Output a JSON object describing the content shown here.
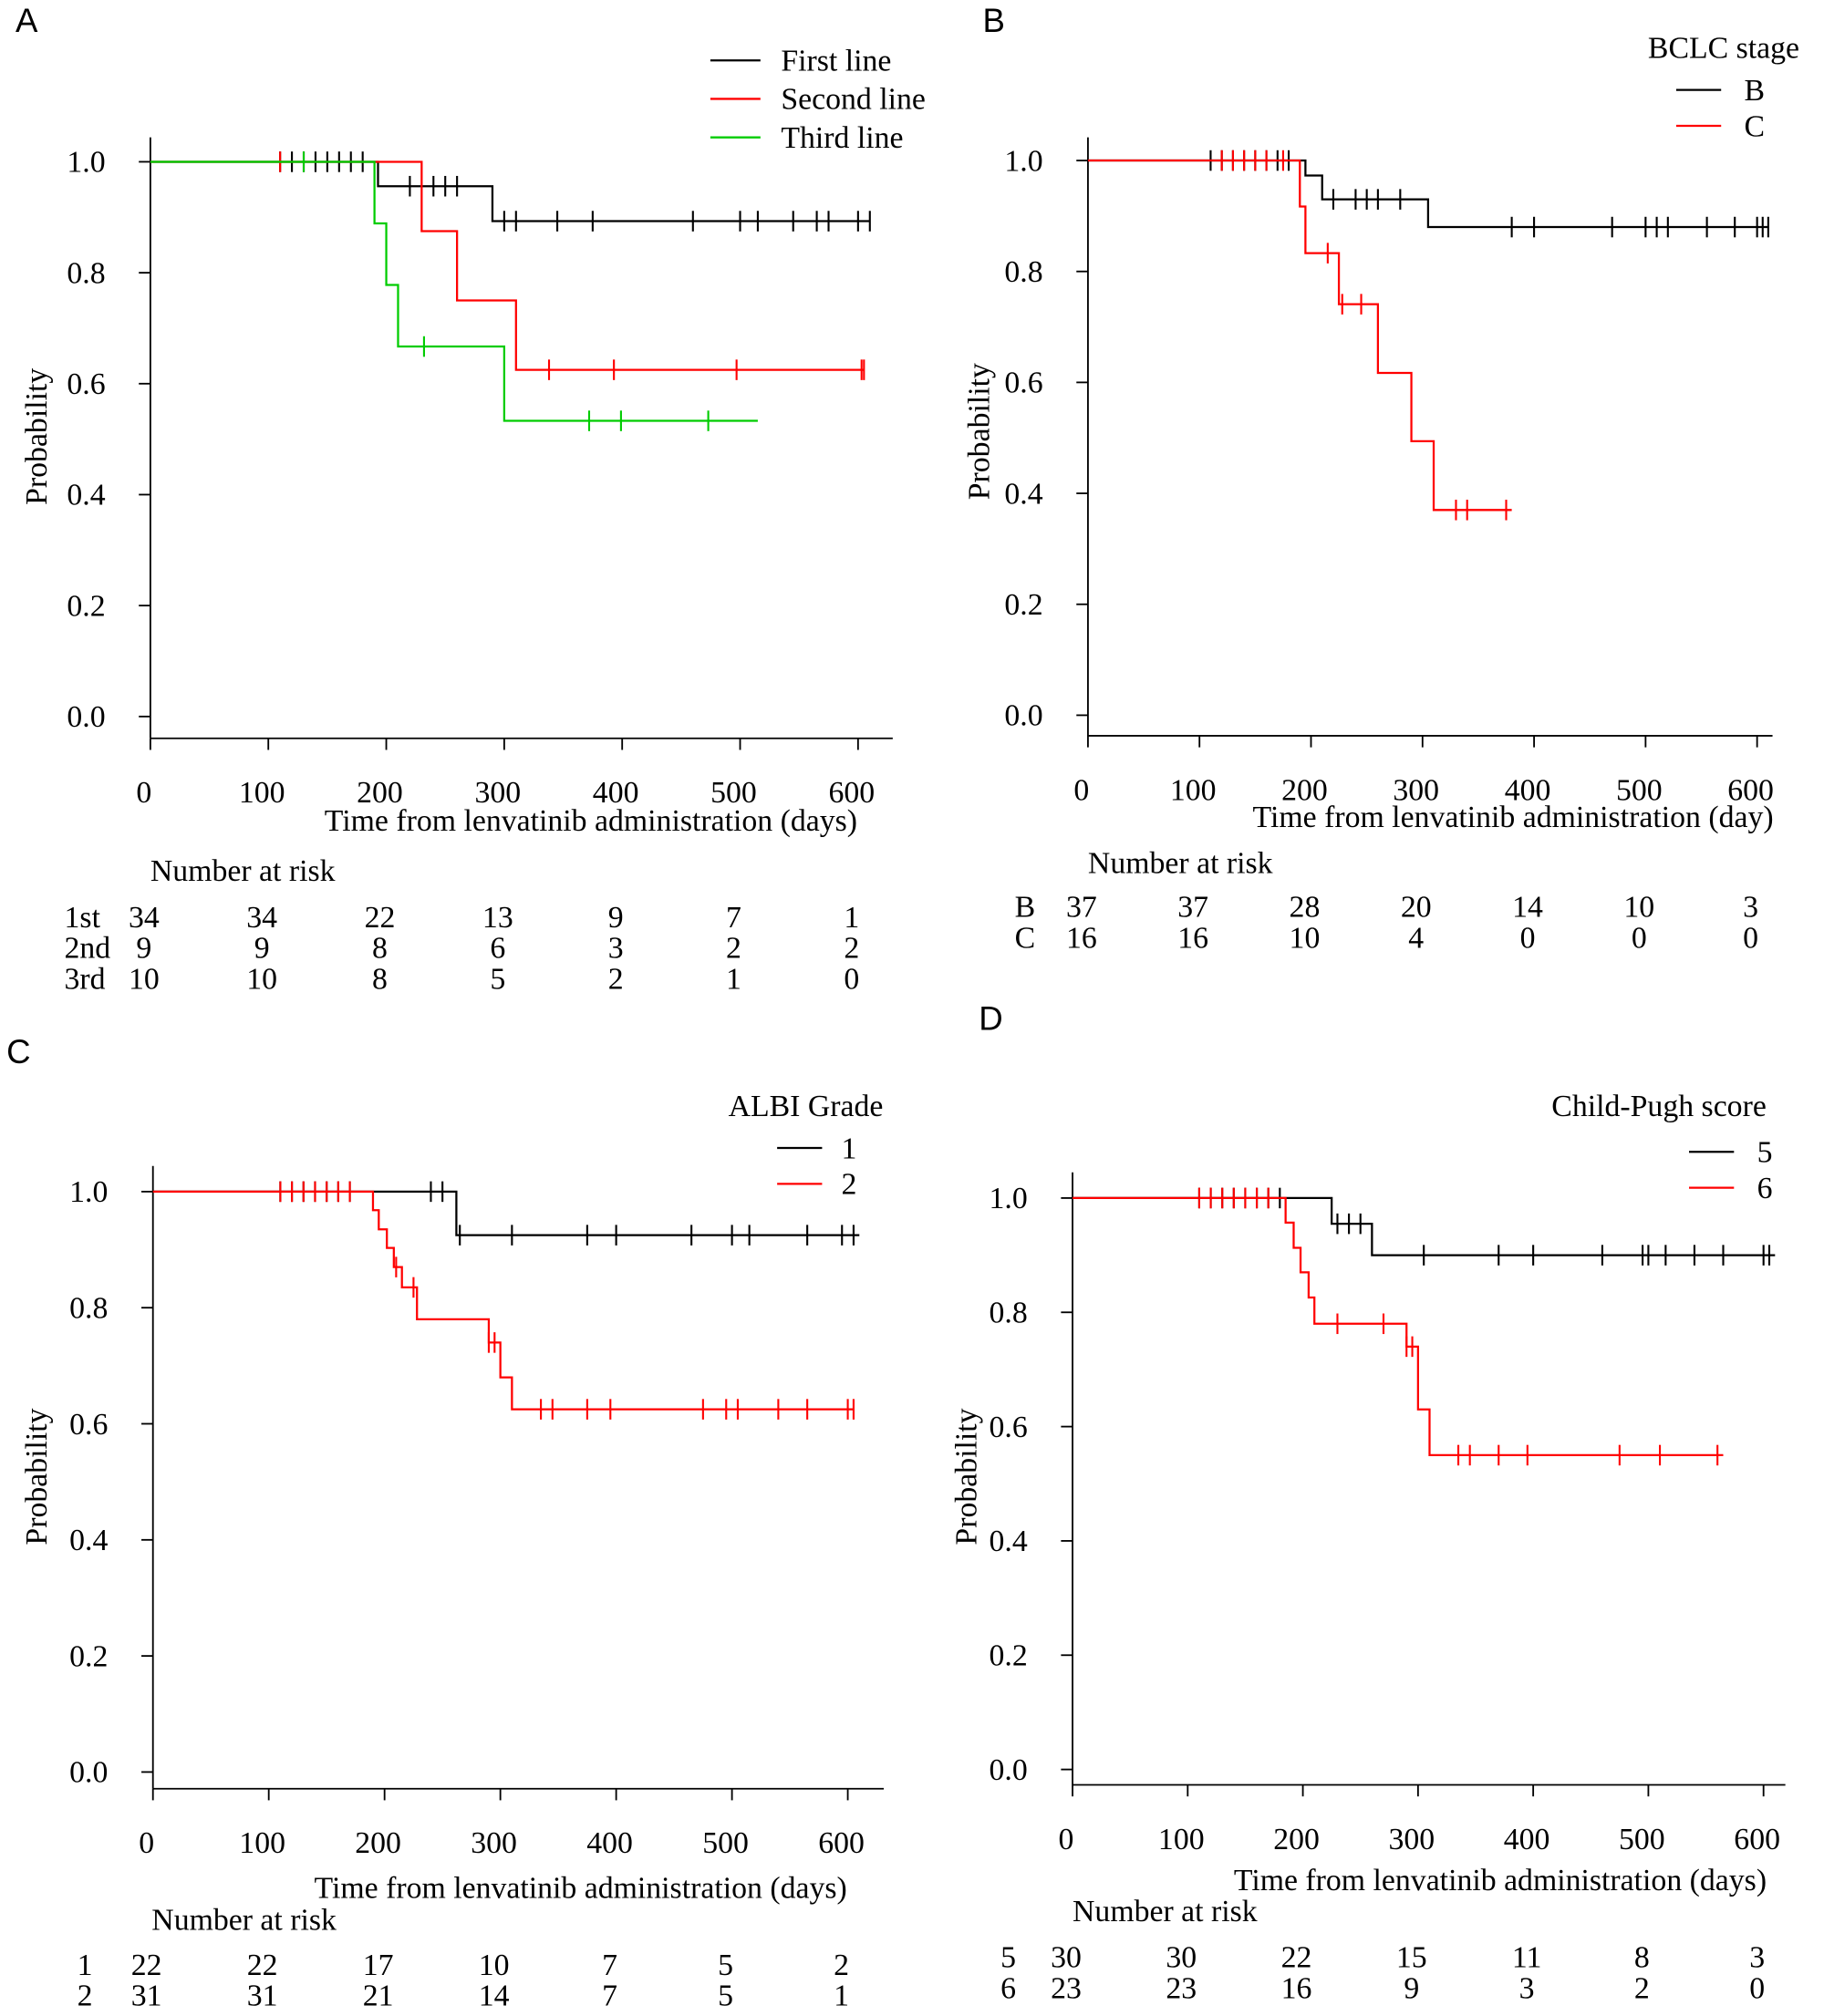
{
  "chart_data": [
    {
      "panel": "A",
      "type": "line",
      "xlabel": "Time from lenvatinib administration (days)",
      "ylabel": "Probability",
      "xlim": [
        0,
        600
      ],
      "ylim": [
        0,
        1
      ],
      "xticks": [
        0,
        100,
        200,
        300,
        400,
        500,
        600
      ],
      "yticks": [
        "0.0",
        "0.2",
        "0.4",
        "0.6",
        "0.8",
        "1.0"
      ],
      "legend_title": "",
      "series": [
        {
          "name": "First line",
          "color": "#000000",
          "steps": [
            [
              0,
              1.0
            ],
            [
              193,
              0.956
            ],
            [
              290,
              0.893
            ]
          ],
          "end": 610,
          "censor": [
            110,
            120,
            130,
            140,
            150,
            160,
            170,
            180,
            220,
            240,
            250,
            260,
            300,
            310,
            345,
            375,
            460,
            500,
            515,
            545,
            565,
            575,
            600,
            610
          ]
        },
        {
          "name": "Second line",
          "color": "#ff0000",
          "steps": [
            [
              0,
              1.0
            ],
            [
              230,
              0.875
            ],
            [
              260,
              0.75
            ],
            [
              310,
              0.625
            ]
          ],
          "end": 605,
          "censor": [
            110,
            338,
            393,
            497,
            603,
            605
          ]
        },
        {
          "name": "Third line",
          "color": "#00cc00",
          "steps": [
            [
              0,
              1.0
            ],
            [
              190,
              0.889
            ],
            [
              200,
              0.778
            ],
            [
              210,
              0.667
            ],
            [
              300,
              0.533
            ]
          ],
          "end": 515,
          "censor": [
            130,
            232,
            372,
            399,
            473
          ]
        }
      ],
      "risk_title": "Number at risk",
      "risk": [
        {
          "label": "1st",
          "values": [
            34,
            34,
            22,
            13,
            9,
            7,
            1
          ]
        },
        {
          "label": "2nd",
          "values": [
            9,
            9,
            8,
            6,
            3,
            2,
            2
          ]
        },
        {
          "label": "3rd",
          "values": [
            10,
            10,
            8,
            5,
            2,
            1,
            0
          ]
        }
      ]
    },
    {
      "panel": "B",
      "type": "line",
      "xlabel": "Time from lenvatinib administration (day)",
      "ylabel": "Probability",
      "xlim": [
        0,
        600
      ],
      "ylim": [
        0,
        1
      ],
      "xticks": [
        0,
        100,
        200,
        300,
        400,
        500,
        600
      ],
      "yticks": [
        "0.0",
        "0.2",
        "0.4",
        "0.6",
        "0.8",
        "1.0"
      ],
      "legend_title": "BCLC stage",
      "series": [
        {
          "name": "B",
          "color": "#000000",
          "steps": [
            [
              0,
              1.0
            ],
            [
              195,
              0.973
            ],
            [
              210,
              0.93
            ],
            [
              305,
              0.88
            ]
          ],
          "end": 610,
          "censor": [
            110,
            120,
            130,
            140,
            150,
            160,
            170,
            180,
            220,
            240,
            250,
            260,
            280,
            380,
            400,
            470,
            500,
            510,
            520,
            555,
            580,
            600,
            605,
            610
          ]
        },
        {
          "name": "C",
          "color": "#ff0000",
          "steps": [
            [
              0,
              1.0
            ],
            [
              190,
              0.917
            ],
            [
              195,
              0.833
            ],
            [
              225,
              0.741
            ],
            [
              260,
              0.617
            ],
            [
              290,
              0.494
            ],
            [
              310,
              0.37
            ]
          ],
          "end": 380,
          "censor": [
            120,
            130,
            140,
            150,
            160,
            175,
            215,
            228,
            245,
            330,
            340,
            375
          ]
        }
      ],
      "risk_title": "Number at risk",
      "risk": [
        {
          "label": "B",
          "values": [
            37,
            37,
            28,
            20,
            14,
            10,
            3
          ]
        },
        {
          "label": "C",
          "values": [
            16,
            16,
            10,
            4,
            0,
            0,
            0
          ]
        }
      ]
    },
    {
      "panel": "C",
      "type": "line",
      "xlabel": "Time from lenvatinib administration (days)",
      "ylabel": "Probability",
      "xlim": [
        0,
        600
      ],
      "ylim": [
        0,
        1
      ],
      "xticks": [
        0,
        100,
        200,
        300,
        400,
        500,
        600
      ],
      "yticks": [
        "0.0",
        "0.2",
        "0.4",
        "0.6",
        "0.8",
        "1.0"
      ],
      "legend_title": "ALBI Grade",
      "series": [
        {
          "name": "1",
          "color": "#000000",
          "steps": [
            [
              0,
              1.0
            ],
            [
              262,
              0.925
            ]
          ],
          "end": 610,
          "censor": [
            110,
            120,
            130,
            140,
            150,
            160,
            170,
            240,
            250,
            265,
            310,
            375,
            400,
            465,
            500,
            515,
            565,
            595,
            605
          ]
        },
        {
          "name": "2",
          "color": "#ff0000",
          "steps": [
            [
              0,
              1.0
            ],
            [
              190,
              0.968
            ],
            [
              195,
              0.935
            ],
            [
              202,
              0.903
            ],
            [
              208,
              0.87
            ],
            [
              215,
              0.835
            ],
            [
              228,
              0.78
            ],
            [
              290,
              0.74
            ],
            [
              300,
              0.68
            ],
            [
              310,
              0.625
            ]
          ],
          "end": 605,
          "censor": [
            110,
            120,
            130,
            140,
            150,
            160,
            170,
            210,
            225,
            290,
            295,
            335,
            345,
            375,
            395,
            475,
            495,
            505,
            540,
            565,
            600,
            605
          ]
        }
      ],
      "risk_title": "Number at risk",
      "risk": [
        {
          "label": "1",
          "values": [
            22,
            22,
            17,
            10,
            7,
            5,
            2
          ]
        },
        {
          "label": "2",
          "values": [
            31,
            31,
            21,
            14,
            7,
            5,
            1
          ]
        }
      ]
    },
    {
      "panel": "D",
      "type": "line",
      "xlabel": "Time from lenvatinib administration (days)",
      "ylabel": "Probability",
      "xlim": [
        0,
        600
      ],
      "ylim": [
        0,
        1
      ],
      "xticks": [
        0,
        100,
        200,
        300,
        400,
        500,
        600
      ],
      "yticks": [
        "0.0",
        "0.2",
        "0.4",
        "0.6",
        "0.8",
        "1.0"
      ],
      "legend_title": "Child-Pugh score",
      "series": [
        {
          "name": "5",
          "color": "#000000",
          "steps": [
            [
              0,
              1.0
            ],
            [
              225,
              0.955
            ],
            [
              260,
              0.9
            ]
          ],
          "end": 610,
          "censor": [
            110,
            120,
            130,
            140,
            150,
            160,
            170,
            180,
            230,
            240,
            250,
            305,
            370,
            400,
            460,
            495,
            500,
            515,
            540,
            565,
            600,
            605
          ]
        },
        {
          "name": "6",
          "color": "#ff0000",
          "steps": [
            [
              0,
              1.0
            ],
            [
              185,
              0.957
            ],
            [
              192,
              0.913
            ],
            [
              198,
              0.87
            ],
            [
              205,
              0.826
            ],
            [
              210,
              0.78
            ],
            [
              290,
              0.74
            ],
            [
              300,
              0.63
            ],
            [
              310,
              0.55
            ]
          ],
          "end": 565,
          "censor": [
            110,
            120,
            130,
            140,
            150,
            160,
            170,
            230,
            270,
            290,
            295,
            335,
            345,
            370,
            395,
            475,
            510,
            560
          ]
        }
      ],
      "risk_title": "Number at risk",
      "risk": [
        {
          "label": "5",
          "values": [
            30,
            30,
            22,
            15,
            11,
            8,
            3
          ]
        },
        {
          "label": "6",
          "values": [
            23,
            23,
            16,
            9,
            3,
            2,
            0
          ]
        }
      ]
    }
  ]
}
